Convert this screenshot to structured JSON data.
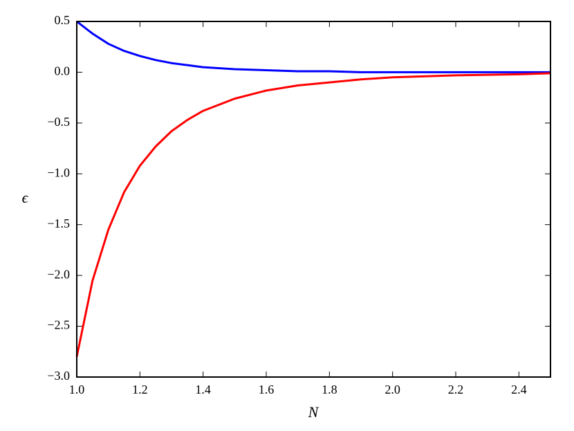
{
  "chart_data": {
    "type": "line",
    "xlabel": "N",
    "ylabel": "ϵ",
    "x": [
      1.0,
      1.05,
      1.1,
      1.15,
      1.2,
      1.25,
      1.3,
      1.35,
      1.4,
      1.5,
      1.6,
      1.7,
      1.8,
      1.9,
      2.0,
      2.2,
      2.4,
      2.5
    ],
    "series": [
      {
        "color": "#0000ff",
        "values": [
          0.5,
          0.38,
          0.28,
          0.21,
          0.16,
          0.12,
          0.09,
          0.07,
          0.05,
          0.03,
          0.02,
          0.01,
          0.01,
          0.0,
          0.0,
          0.0,
          0.0,
          0.0
        ]
      },
      {
        "color": "#ff0000",
        "values": [
          -2.8,
          -2.05,
          -1.55,
          -1.18,
          -0.92,
          -0.73,
          -0.58,
          -0.47,
          -0.38,
          -0.26,
          -0.18,
          -0.13,
          -0.1,
          -0.07,
          -0.05,
          -0.03,
          -0.02,
          -0.01
        ]
      }
    ],
    "xlim": [
      1.0,
      2.5
    ],
    "ylim": [
      -3.0,
      0.5
    ],
    "xticks": [
      {
        "value": 1.0,
        "label": "1.0"
      },
      {
        "value": 1.2,
        "label": "1.2"
      },
      {
        "value": 1.4,
        "label": "1.4"
      },
      {
        "value": 1.6,
        "label": "1.6"
      },
      {
        "value": 1.8,
        "label": "1.8"
      },
      {
        "value": 2.0,
        "label": "2.0"
      },
      {
        "value": 2.2,
        "label": "2.2"
      },
      {
        "value": 2.4,
        "label": "2.4"
      }
    ],
    "yticks": [
      {
        "value": -3.0,
        "label": "−3.0"
      },
      {
        "value": -2.5,
        "label": "−2.5"
      },
      {
        "value": -2.0,
        "label": "−2.0"
      },
      {
        "value": -1.5,
        "label": "−1.5"
      },
      {
        "value": -1.0,
        "label": "−1.0"
      },
      {
        "value": -0.5,
        "label": "−0.5"
      },
      {
        "value": 0.0,
        "label": "0.0"
      },
      {
        "value": 0.5,
        "label": "0.5"
      }
    ],
    "grid": false
  }
}
